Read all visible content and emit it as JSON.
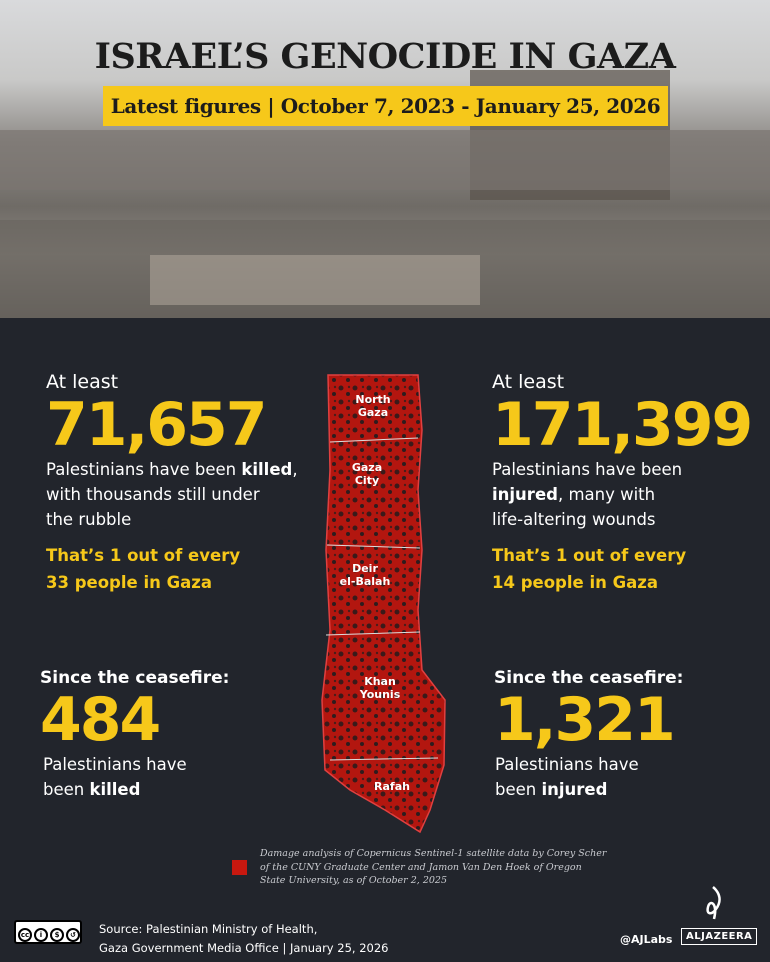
{
  "header": {
    "title": "ISRAEL’S GENOCIDE IN GAZA",
    "subtitle": "Latest figures | October 7, 2023 - January 25, 2026"
  },
  "killed": {
    "label": "At least",
    "value": "71,657",
    "desc_pre": "Palestinians have been ",
    "desc_bold": "killed",
    "desc_post": ",",
    "desc_line2": "with thousands still under",
    "desc_line3": "the rubble",
    "ratio_line1": "That’s 1 out of every",
    "ratio_line2": "33 people in Gaza"
  },
  "injured": {
    "label": "At least",
    "value": "171,399",
    "desc_line1": "Palestinians have been",
    "desc_bold": "injured",
    "desc_post": ", many with",
    "desc_line3": "life-altering wounds",
    "ratio_line1": "That’s 1 out of every",
    "ratio_line2": "14 people in Gaza"
  },
  "ceasefire_killed": {
    "label": "Since the ceasefire:",
    "value": "484",
    "desc_line1": "Palestinians have",
    "desc_pre": "been ",
    "desc_bold": "killed"
  },
  "ceasefire_injured": {
    "label": "Since the ceasefire:",
    "value": "1,321",
    "desc_line1": "Palestinians have",
    "desc_pre": "been ",
    "desc_bold": "injured"
  },
  "map": {
    "regions": [
      "North Gaza",
      "Gaza City",
      "Deir el-Balah",
      "Khan Younis",
      "Rafah"
    ],
    "region_lines": [
      [
        "North",
        "Gaza"
      ],
      [
        "Gaza",
        "City"
      ],
      [
        "Deir",
        "el-Balah"
      ],
      [
        "Khan",
        "Younis"
      ],
      [
        "Rafah"
      ]
    ],
    "damage_color": "#c8180f"
  },
  "note": {
    "text": "Damage analysis of Copernicus Sentinel-1 satellite data by  Corey Scher of the CUNY Graduate Center and Jamon Van Den Hoek of Oregon State University, as of  October 2, 2025"
  },
  "footer": {
    "source_line1": "Source:  Palestinian Ministry of Health,",
    "source_line2": "Gaza Government Media Office   |   January 25, 2026",
    "license": [
      "cc",
      "BY",
      "NC",
      "SA"
    ],
    "handle": "@AJLabs",
    "brand": "ALJAZEERA"
  },
  "colors": {
    "accent": "#f6c81a",
    "background": "#22252c"
  }
}
